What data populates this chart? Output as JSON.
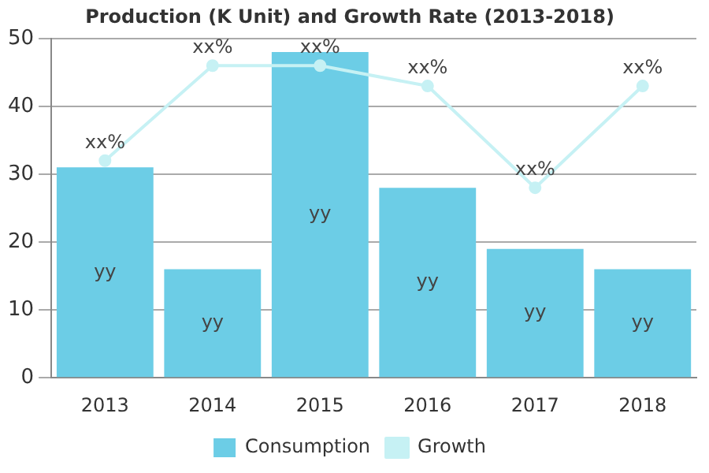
{
  "chart_data": {
    "type": "bar",
    "title": "Production (K Unit) and Growth Rate (2013-2018)",
    "categories": [
      "2013",
      "2014",
      "2015",
      "2016",
      "2017",
      "2018"
    ],
    "series": [
      {
        "name": "Consumption",
        "color": "#6ccde6",
        "values": [
          31,
          16,
          48,
          28,
          19,
          16
        ],
        "value_labels": [
          "yy",
          "yy",
          "yy",
          "yy",
          "yy",
          "yy"
        ]
      },
      {
        "name": "Growth",
        "type": "line",
        "color": "#c6f1f4",
        "values": [
          32,
          46,
          46,
          43,
          28,
          43
        ],
        "value_labels": [
          "xx%",
          "xx%",
          "xx%",
          "xx%",
          "xx%",
          "xx%"
        ]
      }
    ],
    "ylim": [
      0,
      50
    ],
    "yticks": [
      0,
      10,
      20,
      30,
      40,
      50
    ],
    "grid": "y",
    "legend": "bottom",
    "marker": "circle"
  }
}
